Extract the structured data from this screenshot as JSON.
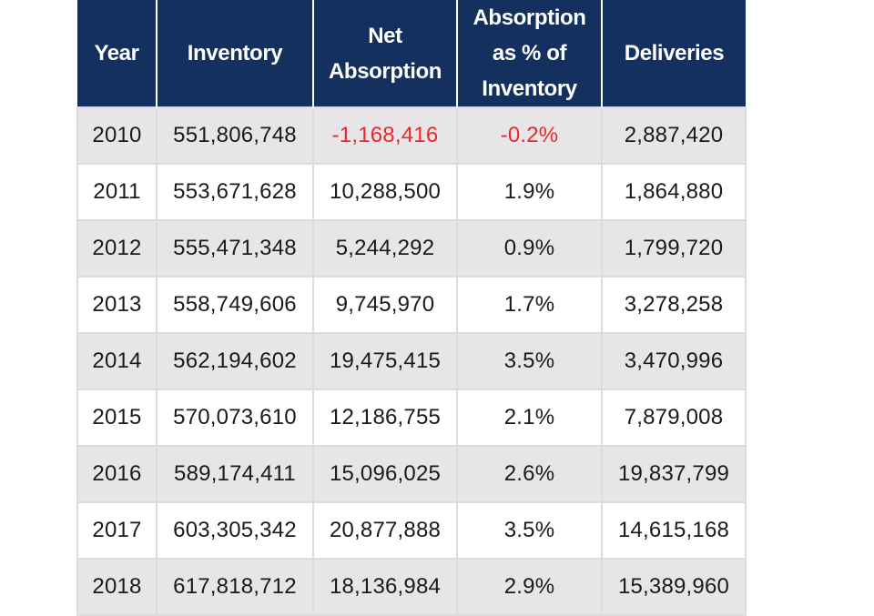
{
  "table": {
    "headers": {
      "year": "Year",
      "inventory": "Inventory",
      "net_absorption": "Net Absorption",
      "absorption_pct": "Absorption as % of Inventory",
      "deliveries": "Deliveries"
    },
    "rows": [
      {
        "year": "2010",
        "inventory": "551,806,748",
        "net_absorption": "-1,168,416",
        "absorption_pct": "-0.2%",
        "deliveries": "2,887,420"
      },
      {
        "year": "2011",
        "inventory": "553,671,628",
        "net_absorption": "10,288,500",
        "absorption_pct": "1.9%",
        "deliveries": "1,864,880"
      },
      {
        "year": "2012",
        "inventory": "555,471,348",
        "net_absorption": "5,244,292",
        "absorption_pct": "0.9%",
        "deliveries": "1,799,720"
      },
      {
        "year": "2013",
        "inventory": "558,749,606",
        "net_absorption": "9,745,970",
        "absorption_pct": "1.7%",
        "deliveries": "3,278,258"
      },
      {
        "year": "2014",
        "inventory": "562,194,602",
        "net_absorption": "19,475,415",
        "absorption_pct": "3.5%",
        "deliveries": "3,470,996"
      },
      {
        "year": "2015",
        "inventory": "570,073,610",
        "net_absorption": "12,186,755",
        "absorption_pct": "2.1%",
        "deliveries": "7,879,008"
      },
      {
        "year": "2016",
        "inventory": "589,174,411",
        "net_absorption": "15,096,025",
        "absorption_pct": "2.6%",
        "deliveries": "19,837,799"
      },
      {
        "year": "2017",
        "inventory": "603,305,342",
        "net_absorption": "20,877,888",
        "absorption_pct": "3.5%",
        "deliveries": "14,615,168"
      },
      {
        "year": "2018",
        "inventory": "617,818,712",
        "net_absorption": "18,136,984",
        "absorption_pct": "2.9%",
        "deliveries": "15,389,960"
      }
    ]
  },
  "colors": {
    "header_bg": "#14305f",
    "header_text": "#ffffff",
    "shaded_row": "#e7e5e7",
    "negative_value": "#e8282b"
  }
}
